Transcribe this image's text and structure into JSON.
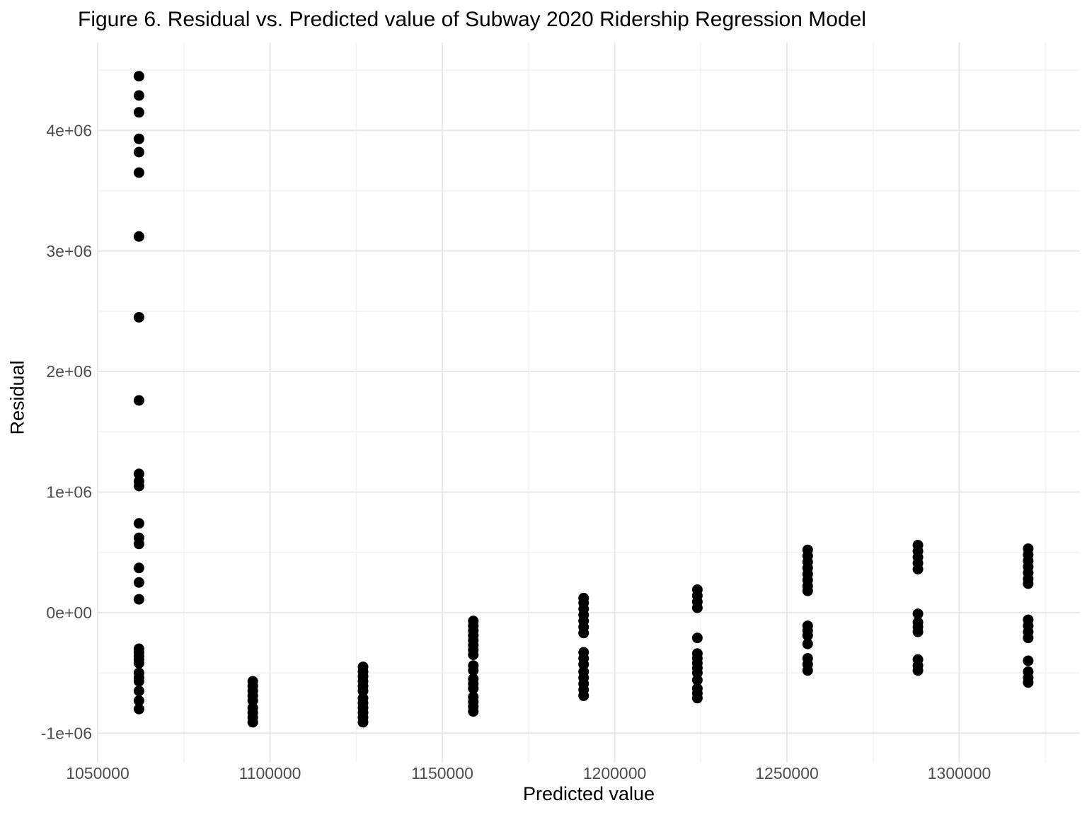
{
  "chart_data": {
    "type": "scatter",
    "title": "Figure 6. Residual vs. Predicted value of Subway 2020 Ridership Regression Model",
    "xlabel": "Predicted value",
    "ylabel": "Residual",
    "xlim": [
      1050000,
      1335000
    ],
    "ylim": [
      -1245000,
      4730000
    ],
    "grid": true,
    "legend": "none",
    "point_color": "#000000",
    "x_ticks": {
      "values": [
        1050000,
        1100000,
        1150000,
        1200000,
        1250000,
        1300000
      ],
      "labels": [
        "1050000",
        "1100000",
        "1150000",
        "1200000",
        "1250000",
        "1300000"
      ]
    },
    "y_ticks": {
      "values": [
        -1000000,
        0,
        1000000,
        2000000,
        3000000,
        4000000
      ],
      "labels": [
        "-1e+06",
        "0e+00",
        "1e+06",
        "2e+06",
        "3e+06",
        "4e+06"
      ]
    },
    "x_minor": [
      1075000,
      1125000,
      1175000,
      1225000,
      1275000,
      1325000
    ],
    "y_minor": [
      -500000,
      500000,
      1500000,
      2500000,
      3500000,
      4500000
    ],
    "groups": [
      {
        "predicted": 1062000,
        "residuals": [
          4450000,
          4290000,
          4150000,
          3930000,
          3820000,
          3650000,
          3120000,
          2450000,
          1760000,
          1150000,
          1090000,
          1050000,
          740000,
          620000,
          570000,
          370000,
          250000,
          110000,
          -300000,
          -330000,
          -360000,
          -390000,
          -420000,
          -500000,
          -540000,
          -570000,
          -650000,
          -730000,
          -800000
        ]
      },
      {
        "predicted": 1095000,
        "residuals": [
          -570000,
          -610000,
          -650000,
          -690000,
          -730000,
          -790000,
          -830000,
          -870000,
          -910000
        ]
      },
      {
        "predicted": 1127000,
        "residuals": [
          -450000,
          -490000,
          -530000,
          -570000,
          -610000,
          -650000,
          -710000,
          -750000,
          -790000,
          -830000,
          -870000,
          -910000
        ]
      },
      {
        "predicted": 1159000,
        "residuals": [
          -70000,
          -110000,
          -150000,
          -190000,
          -230000,
          -270000,
          -310000,
          -350000,
          -440000,
          -480000,
          -550000,
          -590000,
          -630000,
          -700000,
          -740000,
          -780000,
          -820000
        ]
      },
      {
        "predicted": 1191000,
        "residuals": [
          120000,
          80000,
          30000,
          -20000,
          -70000,
          -120000,
          -170000,
          -330000,
          -380000,
          -430000,
          -490000,
          -540000,
          -590000,
          -640000,
          -690000
        ]
      },
      {
        "predicted": 1224000,
        "residuals": [
          190000,
          140000,
          90000,
          40000,
          -210000,
          -340000,
          -380000,
          -420000,
          -460000,
          -500000,
          -560000,
          -630000,
          -670000,
          -710000
        ]
      },
      {
        "predicted": 1256000,
        "residuals": [
          520000,
          470000,
          420000,
          370000,
          320000,
          270000,
          220000,
          180000,
          -110000,
          -150000,
          -190000,
          -260000,
          -380000,
          -430000,
          -480000
        ]
      },
      {
        "predicted": 1288000,
        "residuals": [
          560000,
          510000,
          460000,
          410000,
          360000,
          -10000,
          -80000,
          -120000,
          -160000,
          -390000,
          -440000,
          -480000
        ]
      },
      {
        "predicted": 1320000,
        "residuals": [
          530000,
          480000,
          430000,
          380000,
          330000,
          280000,
          240000,
          -60000,
          -110000,
          -160000,
          -210000,
          -400000,
          -490000,
          -540000,
          -580000
        ]
      }
    ]
  },
  "styles": {
    "background": "#ffffff",
    "title_color": "#000000",
    "tick_label_color": "#4d4d4d",
    "grid_major": "#e8e8e8",
    "grid_minor": "#f3f3f3",
    "point_color": "#000000"
  }
}
